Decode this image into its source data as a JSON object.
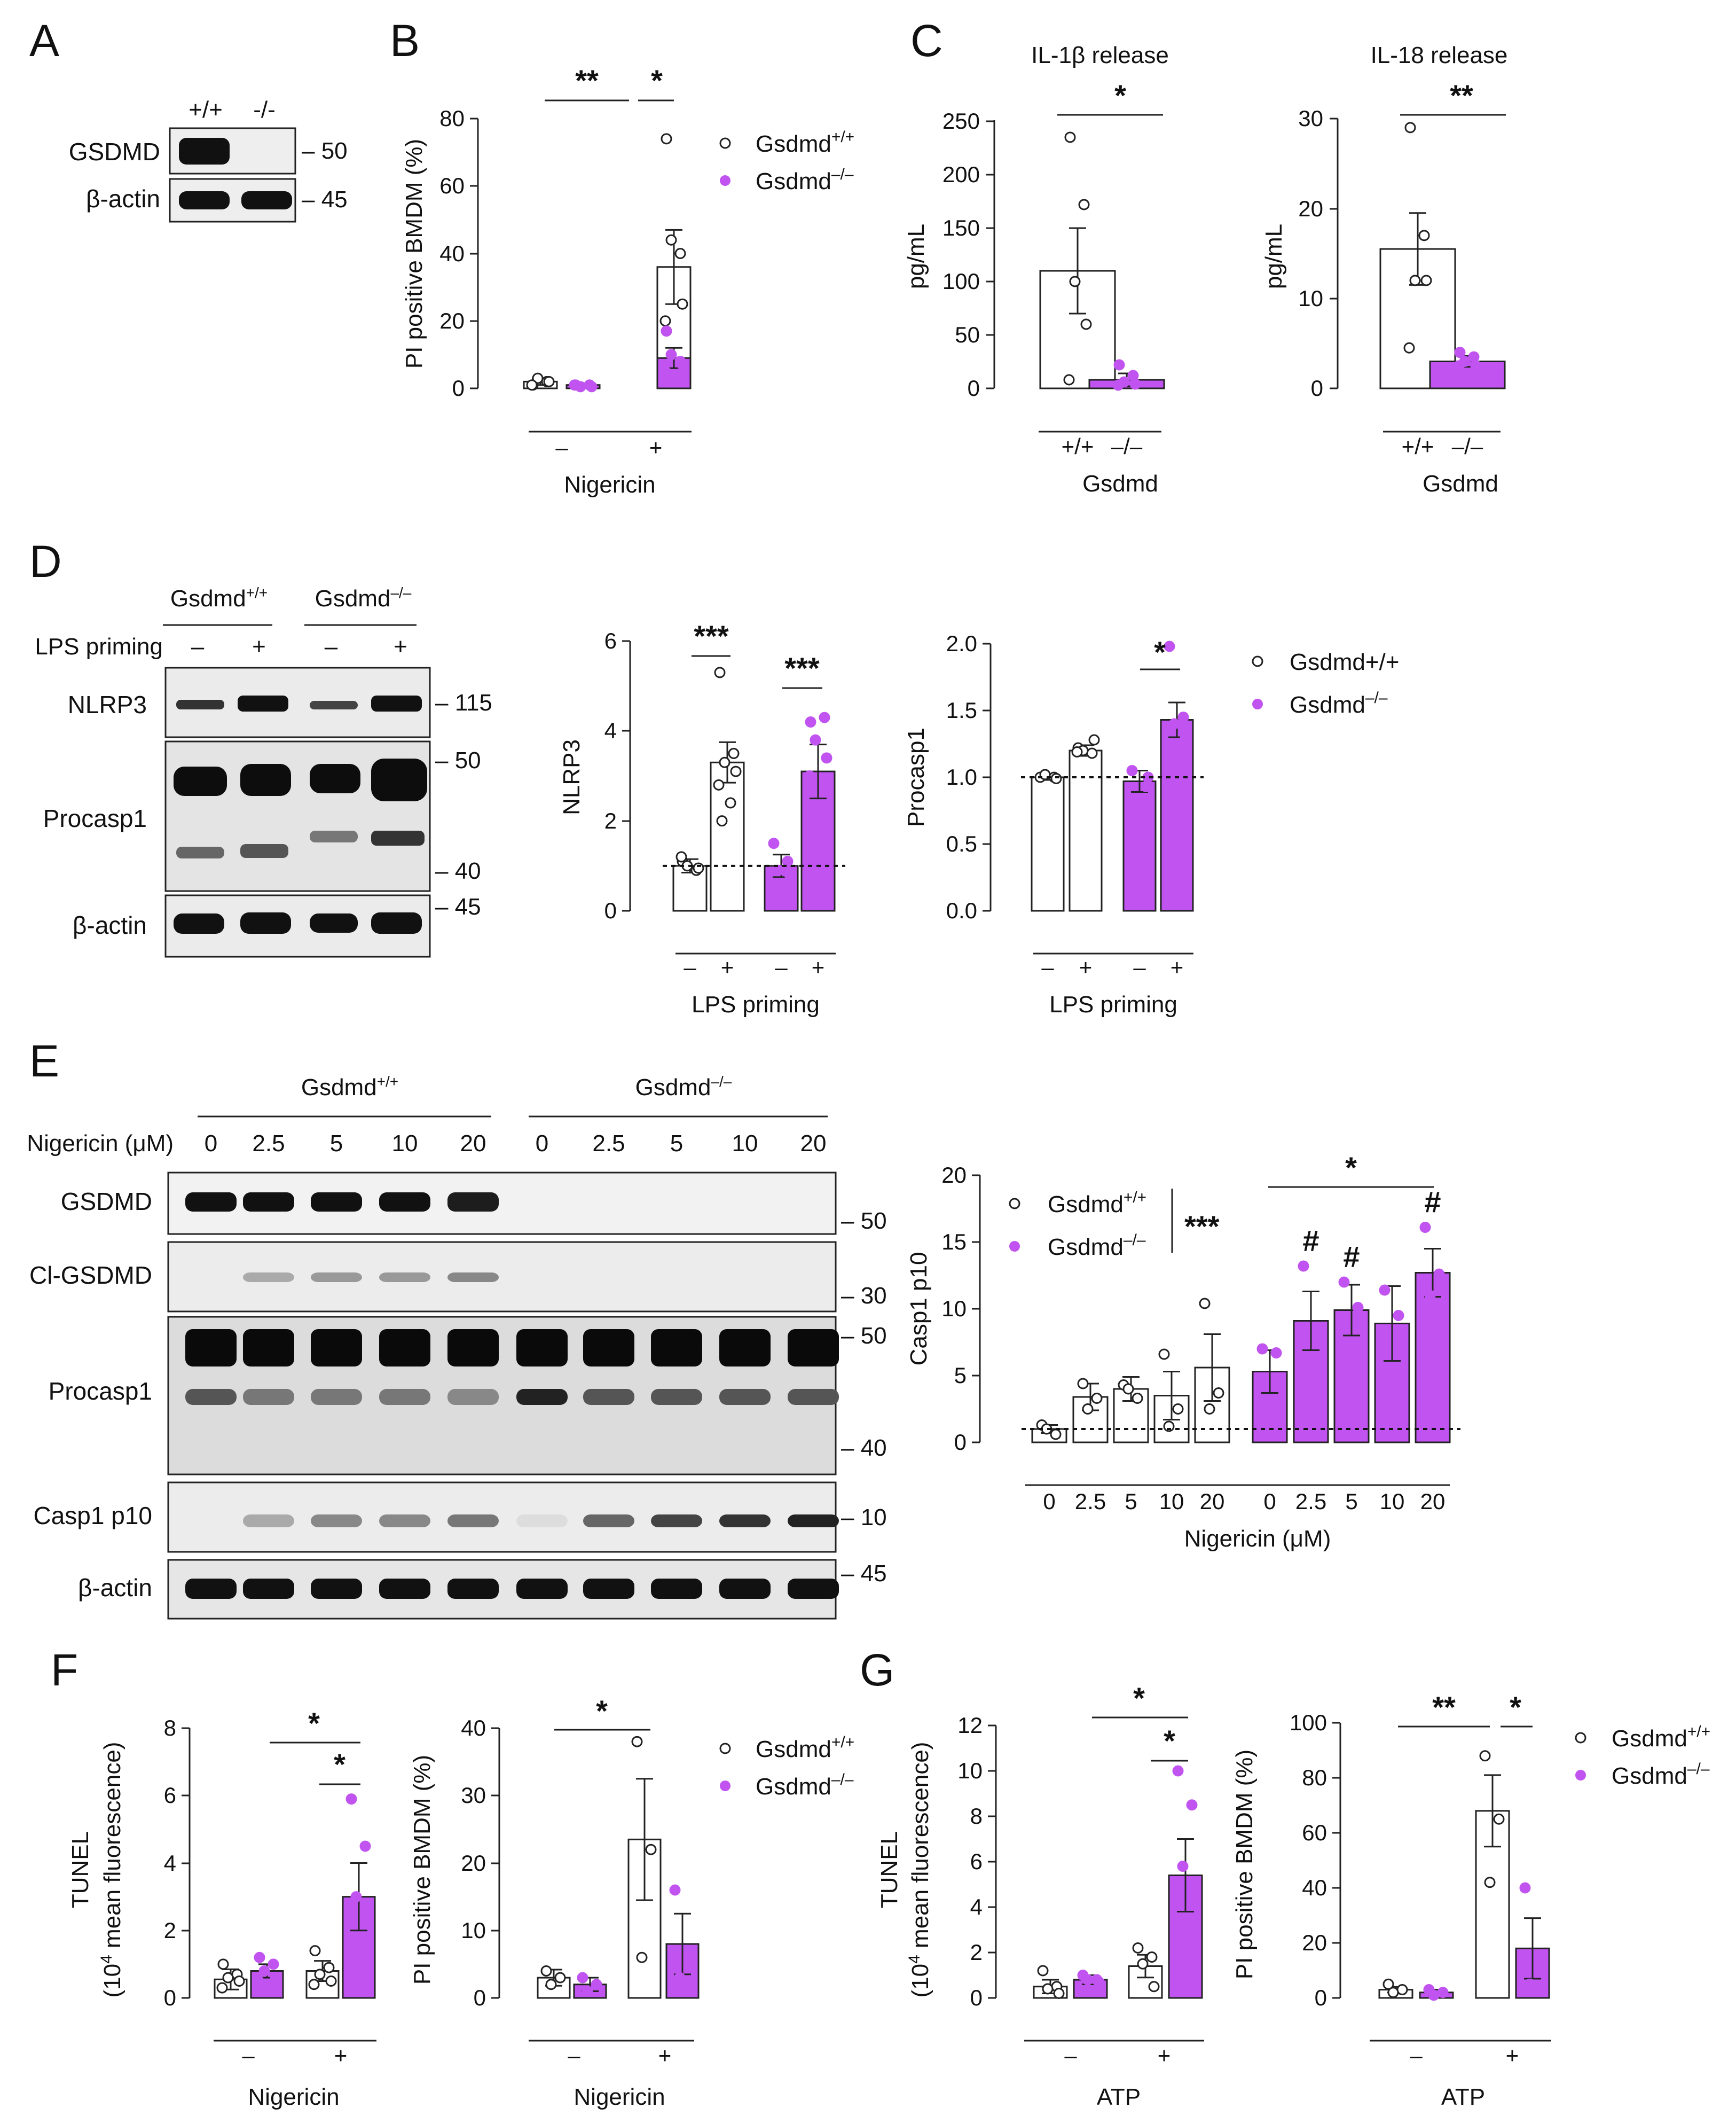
{
  "colors": {
    "wt": "#ffffff",
    "ko": "#c154f0",
    "axis": "#222222",
    "band": "#1a1a1a",
    "blot_bg": "#e9e9e9"
  },
  "legend": {
    "wt": "Gsdmd",
    "wt_sup": "+/+",
    "ko": "Gsdmd",
    "ko_sup": "–/–",
    "d_wt": "Gsdmd+/+",
    "d_ko": "Gsdmd",
    "d_ko_sup": "–/–"
  },
  "A": {
    "letter": "A",
    "lanes": [
      "+/+",
      "-/-"
    ],
    "rows": [
      {
        "label": "GSDMD",
        "mw": "– 50"
      },
      {
        "label": "β-actin",
        "mw": "– 45"
      }
    ]
  },
  "B": {
    "letter": "B",
    "ylabel": "PI positive BMDM (%)",
    "xlabel": "Nigericin",
    "ticks": [
      "0",
      "20",
      "40",
      "60",
      "80"
    ],
    "groups": [
      "–",
      "+"
    ],
    "stars": [
      "**",
      "*"
    ]
  },
  "C": {
    "letter": "C",
    "left": {
      "title": "IL-1β release",
      "ylabel": "pg/mL",
      "ticks": [
        "0",
        "50",
        "100",
        "150",
        "200",
        "250"
      ],
      "groups": [
        "+/+",
        "–/–"
      ],
      "xlabel": "Gsdmd",
      "star": "*"
    },
    "right": {
      "title": "IL-18 release",
      "ylabel": "pg/mL",
      "ticks": [
        "0",
        "10",
        "20",
        "30"
      ],
      "groups": [
        "+/+",
        "–/–"
      ],
      "xlabel": "Gsdmd",
      "star": "**"
    }
  },
  "D": {
    "letter": "D",
    "genotypes": [
      "Gsdmd",
      "Gsdmd"
    ],
    "genotype_sups": [
      "+/+",
      "–/–"
    ],
    "priming_label": "LPS priming",
    "priming": [
      "–",
      "+",
      "–",
      "+"
    ],
    "rows": [
      {
        "label": "NLRP3",
        "mw": [
          "– 115"
        ]
      },
      {
        "label": "Procasp1",
        "mw": [
          "– 50",
          "– 40"
        ]
      },
      {
        "label": "β-actin",
        "mw": [
          "– 45"
        ]
      }
    ],
    "nlrp3": {
      "ylabel": "NLRP3",
      "ticks": [
        "0",
        "2",
        "4",
        "6"
      ],
      "stars": [
        "***",
        "***"
      ],
      "xlabel": "LPS priming",
      "groups": [
        "–",
        "+",
        "–",
        "+"
      ]
    },
    "procasp1": {
      "ylabel": "Procasp1",
      "ticks": [
        "0.0",
        "0.5",
        "1.0",
        "1.5",
        "2.0"
      ],
      "star": "*",
      "xlabel": "LPS priming",
      "groups": [
        "–",
        "+",
        "–",
        "+"
      ]
    }
  },
  "E": {
    "letter": "E",
    "genotypes": [
      "Gsdmd",
      "Gsdmd"
    ],
    "genotype_sups": [
      "+/+",
      "–/–"
    ],
    "conc_label": "Nigericin (μM)",
    "conc": [
      "0",
      "2.5",
      "5",
      "10",
      "20",
      "0",
      "2.5",
      "5",
      "10",
      "20"
    ],
    "rows": [
      {
        "label": "GSDMD",
        "mw": [
          "– 50"
        ]
      },
      {
        "label": "Cl-GSDMD",
        "mw": [
          "– 30"
        ]
      },
      {
        "label": "Procasp1",
        "mw": [
          "– 50",
          "– 40"
        ]
      },
      {
        "label": "Casp1 p10",
        "mw": [
          "– 10"
        ]
      },
      {
        "label": "β-actin",
        "mw": [
          "– 45"
        ]
      }
    ],
    "chart": {
      "ylabel": "Casp1 p10",
      "ticks": [
        "0",
        "5",
        "10",
        "15",
        "20"
      ],
      "xlabel": "Nigericin (μM)",
      "sig_legend": "***",
      "star": "*",
      "hash": "#"
    }
  },
  "F": {
    "letter": "F",
    "tunel": {
      "ylabel1": "TUNEL",
      "ylabel2": "(10",
      "ylabel2_sup": "4",
      "ylabel2_tail": " mean fluorescence)",
      "ticks": [
        "0",
        "2",
        "4",
        "6",
        "8"
      ],
      "xlabel": "Nigericin",
      "groups": [
        "–",
        "+"
      ],
      "stars": [
        "*",
        "*"
      ]
    },
    "pi": {
      "ylabel": "PI positive BMDM (%)",
      "ticks": [
        "0",
        "10",
        "20",
        "30",
        "40"
      ],
      "xlabel": "Nigericin",
      "groups": [
        "–",
        "+"
      ],
      "star": "*"
    }
  },
  "G": {
    "letter": "G",
    "tunel": {
      "ylabel1": "TUNEL",
      "ylabel2": "(10",
      "ylabel2_sup": "4",
      "ylabel2_tail": " mean fluorescence)",
      "ticks": [
        "0",
        "2",
        "4",
        "6",
        "8",
        "10",
        "12"
      ],
      "xlabel": "ATP",
      "groups": [
        "–",
        "+"
      ],
      "stars": [
        "*",
        "*"
      ]
    },
    "pi": {
      "ylabel": "PI positive BMDM (%)",
      "ticks": [
        "0",
        "20",
        "40",
        "60",
        "80",
        "100"
      ],
      "xlabel": "ATP",
      "groups": [
        "–",
        "+"
      ],
      "stars": [
        "**",
        "*"
      ]
    }
  },
  "chart_data": [
    {
      "id": "B",
      "type": "bar",
      "title": "",
      "ylabel": "PI positive BMDM (%)",
      "xlabel": "Nigericin",
      "ylim": [
        0,
        80
      ],
      "categories": [
        "–",
        "+"
      ],
      "series": [
        {
          "name": "Gsdmd+/+",
          "values": [
            2,
            36
          ],
          "err": [
            1,
            11
          ],
          "points": [
            [
              1,
              2,
              3,
              2,
              1
            ],
            [
              74,
              40,
              44,
              25,
              20
            ]
          ]
        },
        {
          "name": "Gsdmd–/–",
          "values": [
            1,
            9
          ],
          "err": [
            0.5,
            3
          ],
          "points": [
            [
              1,
              1,
              0.5,
              0.5,
              1
            ],
            [
              17,
              8,
              10,
              7,
              5
            ]
          ]
        }
      ]
    },
    {
      "id": "C-IL1b",
      "type": "bar",
      "title": "IL-1β release",
      "ylabel": "pg/mL",
      "xlabel": "Gsdmd",
      "ylim": [
        0,
        250
      ],
      "categories": [
        "+/+",
        "–/–"
      ],
      "values": [
        110,
        8
      ],
      "err": [
        40,
        6
      ],
      "points": [
        [
          235,
          172,
          100,
          60,
          8
        ],
        [
          22,
          12,
          6,
          4,
          3
        ]
      ]
    },
    {
      "id": "C-IL18",
      "type": "bar",
      "title": "IL-18 release",
      "ylabel": "pg/mL",
      "xlabel": "Gsdmd",
      "ylim": [
        0,
        30
      ],
      "categories": [
        "+/+",
        "–/–"
      ],
      "values": [
        15.5,
        3
      ],
      "err": [
        4,
        0.6
      ],
      "points": [
        [
          29,
          17,
          12,
          12,
          4.5
        ],
        [
          4,
          3.5,
          3,
          2.5,
          2.5
        ]
      ]
    },
    {
      "id": "D-NLRP3",
      "type": "bar",
      "title": "",
      "ylabel": "NLRP3",
      "xlabel": "LPS priming",
      "ylim": [
        0,
        6
      ],
      "reference_line": 1,
      "categories": [
        "–",
        "+",
        "–",
        "+"
      ],
      "colors": [
        "wt",
        "wt",
        "ko",
        "ko"
      ],
      "values": [
        1,
        3.3,
        1,
        3.1
      ],
      "err": [
        0.15,
        0.45,
        0.25,
        0.6
      ],
      "points": [
        [
          1.1,
          0.9,
          1.0,
          0.95,
          1.2
        ],
        [
          5.3,
          3.5,
          3.3,
          3.1,
          2.8,
          2.4,
          2.0
        ],
        [
          1.5,
          1.1,
          0.9,
          0.8,
          0.6
        ],
        [
          4.2,
          4.3,
          3.8,
          3.4,
          3.0,
          2.0,
          1.8
        ]
      ]
    },
    {
      "id": "D-Procasp1",
      "type": "bar",
      "title": "",
      "ylabel": "Procasp1",
      "xlabel": "LPS priming",
      "ylim": [
        0,
        2
      ],
      "reference_line": 1,
      "categories": [
        "–",
        "+",
        "–",
        "+"
      ],
      "colors": [
        "wt",
        "wt",
        "ko",
        "ko"
      ],
      "values": [
        1,
        1.2,
        0.97,
        1.43
      ],
      "err": [
        0.02,
        0.04,
        0.08,
        0.13
      ],
      "points": [
        [
          1.0,
          1.0,
          1.02,
          0.99
        ],
        [
          1.22,
          1.18,
          1.2,
          1.28,
          1.19
        ],
        [
          1.05,
          0.93,
          0.78,
          1.0
        ],
        [
          1.98,
          1.45,
          1.4,
          1.3,
          1.0
        ]
      ]
    },
    {
      "id": "E-Casp1p10",
      "type": "bar",
      "title": "",
      "ylabel": "Casp1 p10",
      "xlabel": "Nigericin (μM)",
      "ylim": [
        0,
        20
      ],
      "reference_line": 1,
      "categories": [
        "0",
        "2.5",
        "5",
        "10",
        "20",
        "0",
        "2.5",
        "5",
        "10",
        "20"
      ],
      "colors": [
        "wt",
        "wt",
        "wt",
        "wt",
        "wt",
        "ko",
        "ko",
        "ko",
        "ko",
        "ko"
      ],
      "values": [
        1,
        3.4,
        4,
        3.5,
        5.6,
        5.3,
        9.1,
        9.9,
        8.9,
        12.7
      ],
      "err": [
        0.3,
        1,
        0.9,
        1.8,
        2.5,
        1.6,
        2.2,
        1.9,
        2.8,
        1.8
      ],
      "points": [
        [
          1.3,
          0.6,
          1.0
        ],
        [
          4.4,
          3.3,
          2.5
        ],
        [
          4.3,
          3.3,
          4.0
        ],
        [
          6.6,
          2.5,
          1.2
        ],
        [
          10.4,
          3.7,
          2.5
        ],
        [
          7.0,
          6.7,
          2.9
        ],
        [
          13.2,
          7.5,
          6.0
        ],
        [
          12.0,
          10.1,
          6.5
        ],
        [
          11.4,
          9.5,
          3.7
        ],
        [
          16.1,
          12.6,
          11.0
        ]
      ]
    },
    {
      "id": "F-TUNEL",
      "type": "bar",
      "title": "",
      "ylabel": "TUNEL (10^4 mean fluorescence)",
      "xlabel": "Nigericin",
      "ylim": [
        0,
        8
      ],
      "categories": [
        "–",
        "+"
      ],
      "series": [
        {
          "name": "Gsdmd+/+",
          "values": [
            0.55,
            0.8
          ],
          "err": [
            0.3,
            0.3
          ],
          "points": [
            [
              1.0,
              0.7,
              0.6,
              0.5,
              0.3
            ],
            [
              1.4,
              0.9,
              0.7,
              0.5,
              0.4
            ]
          ]
        },
        {
          "name": "Gsdmd–/–",
          "values": [
            0.8,
            3.0
          ],
          "err": [
            0.2,
            1.0
          ],
          "points": [
            [
              1.2,
              1.0,
              0.8,
              0.6,
              0.5
            ],
            [
              5.9,
              4.5,
              3.0,
              1.5,
              0.5
            ]
          ]
        }
      ]
    },
    {
      "id": "F-PI",
      "type": "bar",
      "title": "",
      "ylabel": "PI positive BMDM (%)",
      "xlabel": "Nigericin",
      "ylim": [
        0,
        40
      ],
      "categories": [
        "–",
        "+"
      ],
      "series": [
        {
          "name": "Gsdmd+/+",
          "values": [
            3,
            23.5
          ],
          "err": [
            1.2,
            9
          ],
          "points": [
            [
              4,
              3,
              2
            ],
            [
              38,
              22,
              6
            ]
          ]
        },
        {
          "name": "Gsdmd–/–",
          "values": [
            2,
            8
          ],
          "err": [
            1,
            4.5
          ],
          "points": [
            [
              3,
              2,
              1
            ],
            [
              16,
              5,
              3
            ]
          ]
        }
      ]
    },
    {
      "id": "G-TUNEL",
      "type": "bar",
      "title": "",
      "ylabel": "TUNEL (10^4 mean fluorescence)",
      "xlabel": "ATP",
      "ylim": [
        0,
        12
      ],
      "categories": [
        "–",
        "+"
      ],
      "series": [
        {
          "name": "Gsdmd+/+",
          "values": [
            0.5,
            1.4
          ],
          "err": [
            0.3,
            0.5
          ],
          "points": [
            [
              1.2,
              0.5,
              0.4,
              0.2
            ],
            [
              2.2,
              1.8,
              1.5,
              0.5
            ]
          ]
        },
        {
          "name": "Gsdmd–/–",
          "values": [
            0.8,
            5.4
          ],
          "err": [
            0.2,
            1.6
          ],
          "points": [
            [
              1.0,
              0.8,
              0.8,
              0.7
            ],
            [
              10.0,
              8.5,
              5.8,
              3.0,
              2.0
            ]
          ]
        }
      ]
    },
    {
      "id": "G-PI",
      "type": "bar",
      "title": "",
      "ylabel": "PI positive BMDM (%)",
      "xlabel": "ATP",
      "ylim": [
        0,
        100
      ],
      "categories": [
        "–",
        "+"
      ],
      "series": [
        {
          "name": "Gsdmd+/+",
          "values": [
            3,
            68
          ],
          "err": [
            1,
            13
          ],
          "points": [
            [
              5,
              3,
              2
            ],
            [
              88,
              65,
              42
            ]
          ]
        },
        {
          "name": "Gsdmd–/–",
          "values": [
            2,
            18
          ],
          "err": [
            1,
            11
          ],
          "points": [
            [
              3,
              2,
              1
            ],
            [
              40,
              10,
              5
            ]
          ]
        }
      ]
    }
  ]
}
